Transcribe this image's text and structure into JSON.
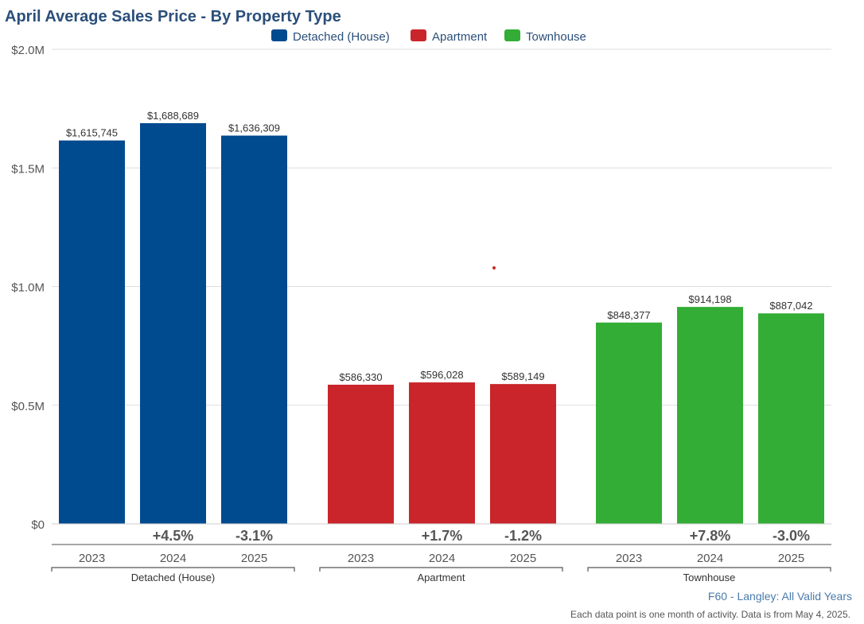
{
  "chart_data": {
    "type": "bar",
    "title": "April Average Sales Price - By Property Type",
    "legend_position": "top",
    "y_ticks": [
      "$2.0M",
      "$1.5M",
      "$1.0M",
      "$0.5M",
      "$0"
    ],
    "ylim": [
      0,
      2000000
    ],
    "grid": true,
    "groups": [
      {
        "name": "Detached (House)",
        "color": "#004a8f",
        "categories": [
          "2023",
          "2024",
          "2025"
        ],
        "values": [
          1615745,
          1688689,
          1636309
        ],
        "value_labels": [
          "$1,615,745",
          "$1,688,689",
          "$1,636,309"
        ],
        "changes": [
          "",
          "+4.5%",
          "-3.1%"
        ]
      },
      {
        "name": "Apartment",
        "color": "#c9252b",
        "categories": [
          "2023",
          "2024",
          "2025"
        ],
        "values": [
          586330,
          596028,
          589149
        ],
        "value_labels": [
          "$586,330",
          "$596,028",
          "$589,149"
        ],
        "changes": [
          "",
          "+1.7%",
          "-1.2%"
        ]
      },
      {
        "name": "Townhouse",
        "color": "#33ad36",
        "categories": [
          "2023",
          "2024",
          "2025"
        ],
        "values": [
          848377,
          914198,
          887042
        ],
        "value_labels": [
          "$848,377",
          "$914,198",
          "$887,042"
        ],
        "changes": [
          "",
          "+7.8%",
          "-3.0%"
        ]
      }
    ],
    "source": "F60 - Langley: All Valid Years",
    "footnote": "Each data point is one month of activity. Data is from May 4, 2025."
  },
  "colors": {
    "title": "#2b4f7a",
    "text": "#444444",
    "grid": "#dddddd",
    "source": "#4a7bab",
    "change": "#555555",
    "outlier_dot": "#c9252b"
  }
}
